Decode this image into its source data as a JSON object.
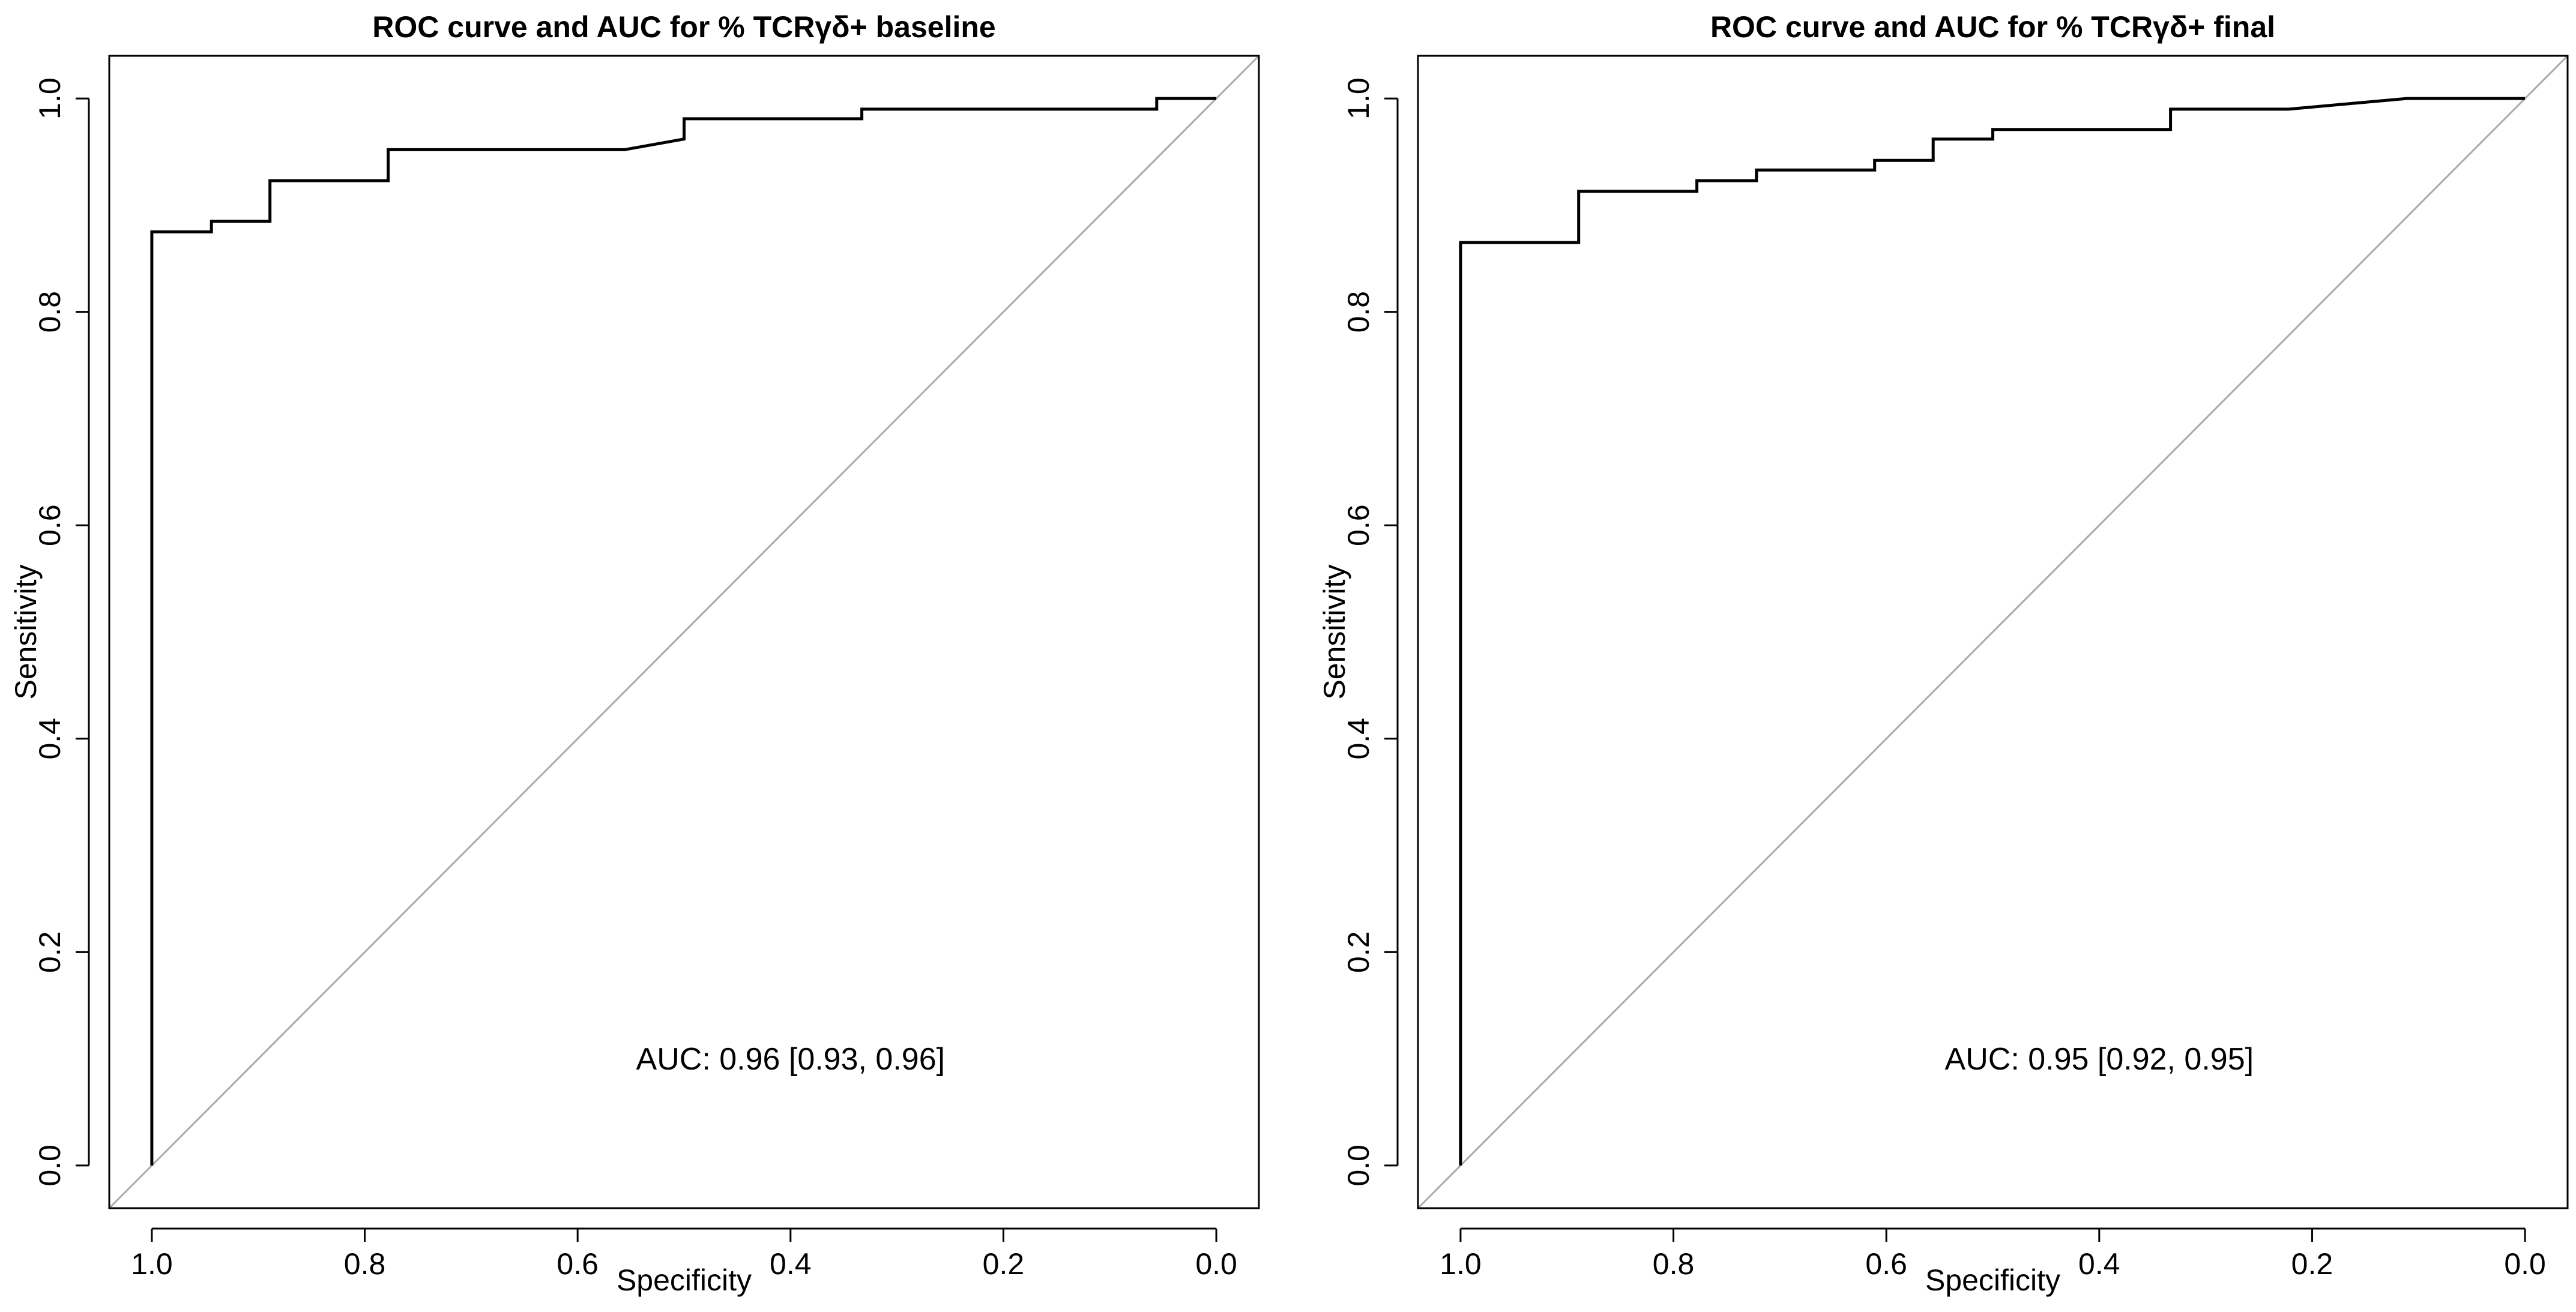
{
  "chart_data": [
    {
      "type": "line",
      "title": "ROC curve and AUC for % TCRγδ+ baseline",
      "xlabel": "Specificity",
      "ylabel": "Sensitivity",
      "xlim": [
        1.04,
        -0.04
      ],
      "ylim": [
        -0.04,
        1.04
      ],
      "x_reversed": true,
      "xticks": [
        1.0,
        0.8,
        0.6,
        0.4,
        0.2,
        0.0
      ],
      "xtick_labels": [
        "1.0",
        "0.8",
        "0.6",
        "0.4",
        "0.2",
        "0.0"
      ],
      "yticks": [
        0.0,
        0.2,
        0.4,
        0.6,
        0.8,
        1.0
      ],
      "ytick_labels": [
        "0.0",
        "0.2",
        "0.4",
        "0.6",
        "0.8",
        "1.0"
      ],
      "grid": false,
      "series": [
        {
          "name": "ROC",
          "specificity": [
            1.0,
            1.0,
            0.944,
            0.944,
            0.889,
            0.889,
            0.778,
            0.778,
            0.556,
            0.5,
            0.5,
            0.333,
            0.333,
            0.056,
            0.056,
            0.0
          ],
          "sensitivity": [
            0.0,
            0.875,
            0.875,
            0.885,
            0.885,
            0.923,
            0.923,
            0.952,
            0.952,
            0.962,
            0.981,
            0.981,
            0.99,
            0.99,
            1.0,
            1.0
          ]
        },
        {
          "name": "reference diagonal",
          "specificity": [
            1.04,
            -0.04
          ],
          "sensitivity": [
            -0.04,
            1.04
          ]
        }
      ],
      "annotation": {
        "text": "AUC: 0.96 [0.93, 0.96]",
        "x": 0.4,
        "y": 0.1
      }
    },
    {
      "type": "line",
      "title": "ROC curve and AUC for % TCRγδ+ final",
      "xlabel": "Specificity",
      "ylabel": "Sensitivity",
      "xlim": [
        1.04,
        -0.04
      ],
      "ylim": [
        -0.04,
        1.04
      ],
      "x_reversed": true,
      "xticks": [
        1.0,
        0.8,
        0.6,
        0.4,
        0.2,
        0.0
      ],
      "xtick_labels": [
        "1.0",
        "0.8",
        "0.6",
        "0.4",
        "0.2",
        "0.0"
      ],
      "yticks": [
        0.0,
        0.2,
        0.4,
        0.6,
        0.8,
        1.0
      ],
      "ytick_labels": [
        "0.0",
        "0.2",
        "0.4",
        "0.6",
        "0.8",
        "1.0"
      ],
      "grid": false,
      "series": [
        {
          "name": "ROC",
          "specificity": [
            1.0,
            1.0,
            0.889,
            0.889,
            0.778,
            0.778,
            0.722,
            0.722,
            0.611,
            0.611,
            0.556,
            0.556,
            0.5,
            0.5,
            0.333,
            0.333,
            0.222,
            0.111,
            0.0
          ],
          "sensitivity": [
            0.0,
            0.865,
            0.865,
            0.913,
            0.913,
            0.923,
            0.923,
            0.933,
            0.933,
            0.942,
            0.942,
            0.962,
            0.962,
            0.971,
            0.971,
            0.99,
            0.99,
            1.0,
            1.0
          ]
        },
        {
          "name": "reference diagonal",
          "specificity": [
            1.04,
            -0.04
          ],
          "sensitivity": [
            -0.04,
            1.04
          ]
        }
      ],
      "annotation": {
        "text": "AUC: 0.95 [0.92, 0.95]",
        "x": 0.4,
        "y": 0.1
      }
    }
  ]
}
